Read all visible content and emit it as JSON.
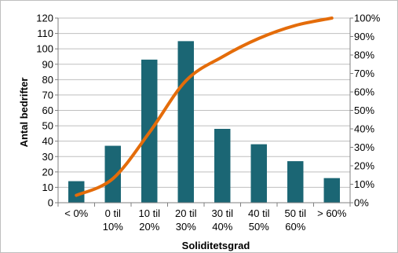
{
  "chart_data": {
    "type": "bar",
    "categories": [
      "< 0%",
      "0 til 10%",
      "10 til 20%",
      "20 til 30%",
      "30 til 40%",
      "40 til 50%",
      "50 til 60%",
      "> 60%"
    ],
    "category_lines": [
      [
        "< 0%"
      ],
      [
        "0 til",
        "10%"
      ],
      [
        "10 til",
        "20%"
      ],
      [
        "20 til",
        "30%"
      ],
      [
        "30 til",
        "40%"
      ],
      [
        "40 til",
        "50%"
      ],
      [
        "50 til",
        "60%"
      ],
      [
        "> 60%"
      ]
    ],
    "series": [
      {
        "values": [
          14,
          37,
          93,
          105,
          48,
          38,
          27,
          16
        ],
        "kind": "bar",
        "axis": "left",
        "color": "#1b6674"
      },
      {
        "values": [
          0.04,
          0.13,
          0.38,
          0.66,
          0.79,
          0.89,
          0.96,
          1.0
        ],
        "kind": "line",
        "axis": "right",
        "color": "#e46c0a"
      }
    ],
    "xlabel": "Soliditetsgrad",
    "ylabel": "Antal bedrifter",
    "ylim": [
      0,
      120
    ],
    "y_ticks": [
      "0",
      "10",
      "20",
      "30",
      "40",
      "50",
      "60",
      "70",
      "80",
      "90",
      "100",
      "110",
      "120"
    ],
    "y2lim": [
      0,
      1
    ],
    "y2_ticks": [
      "0%",
      "10%",
      "20%",
      "30%",
      "40%",
      "50%",
      "60%",
      "70%",
      "80%",
      "90%",
      "100%"
    ],
    "grid": true
  }
}
